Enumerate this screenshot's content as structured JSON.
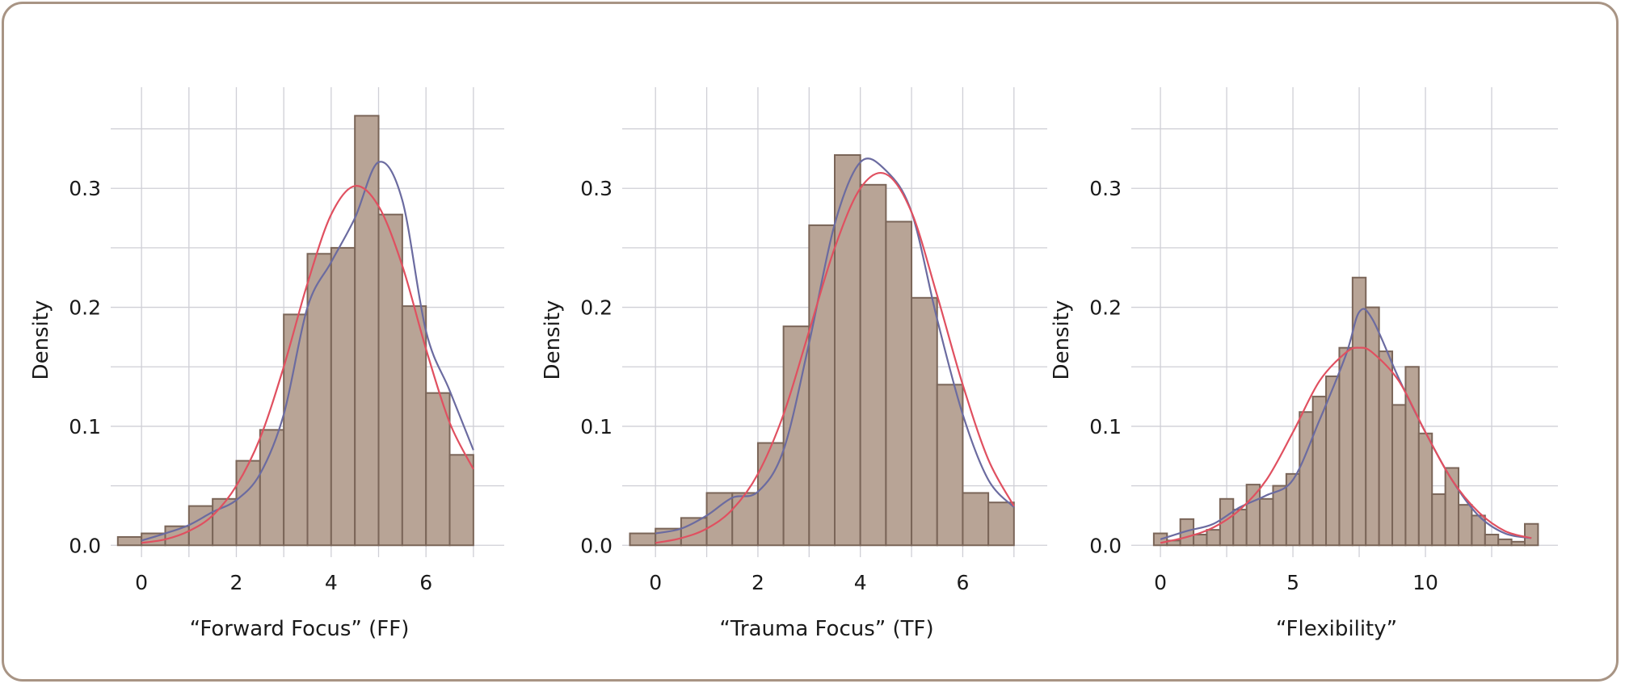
{
  "chart_data": [
    {
      "type": "bar",
      "xlabel": "“Forward Focus” (FF)",
      "ylabel": "Density",
      "xlim": [
        -0.65,
        7.65
      ],
      "ylim": [
        -0.01,
        0.385
      ],
      "xticks": [
        0,
        2,
        4,
        6
      ],
      "xtick_labels": [
        "0",
        "2",
        "4",
        "6"
      ],
      "yticks": [
        0.0,
        0.1,
        0.2,
        0.3
      ],
      "ytick_labels": [
        "0.0",
        "0.1",
        "0.2",
        "0.3"
      ],
      "minor_xgrid": [
        1,
        3,
        5,
        7
      ],
      "minor_ygrid": [
        0.05,
        0.15,
        0.25,
        0.35
      ],
      "grid": true,
      "bars": {
        "edges": [
          -0.5,
          0.0,
          0.5,
          1.0,
          1.5,
          2.0,
          2.5,
          3.0,
          3.5,
          4.0,
          4.5,
          5.0,
          5.5,
          6.0,
          6.5,
          7.0,
          7.5
        ],
        "values": [
          0.007,
          0.01,
          0.016,
          0.033,
          0.039,
          0.071,
          0.097,
          0.194,
          0.245,
          0.25,
          0.361,
          0.278,
          0.201,
          0.128,
          0.076,
          0.0
        ]
      },
      "series": [
        {
          "type": "line",
          "color": "#6b6ba0",
          "x": [
            0,
            0.5,
            1.0,
            1.5,
            2.0,
            2.5,
            3.0,
            3.5,
            4.0,
            4.5,
            5.0,
            5.5,
            6.0,
            6.5,
            7.0
          ],
          "y": [
            0.004,
            0.01,
            0.017,
            0.028,
            0.038,
            0.06,
            0.11,
            0.2,
            0.238,
            0.275,
            0.322,
            0.29,
            0.18,
            0.13,
            0.08
          ]
        },
        {
          "type": "line",
          "color": "#e05060",
          "x": [
            0,
            0.5,
            1.0,
            1.5,
            2.0,
            2.5,
            3.0,
            3.5,
            4.0,
            4.5,
            5.0,
            5.5,
            6.0,
            6.5,
            7.0
          ],
          "y": [
            0.002,
            0.005,
            0.012,
            0.025,
            0.05,
            0.09,
            0.15,
            0.22,
            0.278,
            0.302,
            0.285,
            0.235,
            0.165,
            0.103,
            0.064
          ]
        }
      ]
    },
    {
      "type": "bar",
      "xlabel": "“Trauma Focus” (TF)",
      "ylabel": "Density",
      "xlim": [
        -0.65,
        7.65
      ],
      "ylim": [
        -0.01,
        0.385
      ],
      "xticks": [
        0,
        2,
        4,
        6
      ],
      "xtick_labels": [
        "0",
        "2",
        "4",
        "6"
      ],
      "yticks": [
        0.0,
        0.1,
        0.2,
        0.3
      ],
      "ytick_labels": [
        "0.0",
        "0.1",
        "0.2",
        "0.3"
      ],
      "minor_xgrid": [
        1,
        3,
        5,
        7
      ],
      "minor_ygrid": [
        0.05,
        0.15,
        0.25,
        0.35
      ],
      "grid": true,
      "bars": {
        "edges": [
          -0.5,
          0.0,
          0.5,
          1.0,
          1.5,
          2.0,
          2.5,
          3.0,
          3.5,
          4.0,
          4.5,
          5.0,
          5.5,
          6.0,
          6.5,
          7.0,
          7.5
        ],
        "values": [
          0.01,
          0.014,
          0.023,
          0.044,
          0.044,
          0.086,
          0.184,
          0.269,
          0.328,
          0.303,
          0.272,
          0.208,
          0.135,
          0.044,
          0.036,
          0.0
        ]
      },
      "series": [
        {
          "type": "line",
          "color": "#6b6ba0",
          "x": [
            0,
            0.5,
            1.0,
            1.5,
            2.0,
            2.5,
            3.0,
            3.5,
            4.0,
            4.5,
            5.0,
            5.5,
            6.0,
            6.5,
            7.0
          ],
          "y": [
            0.01,
            0.014,
            0.025,
            0.04,
            0.045,
            0.08,
            0.17,
            0.27,
            0.322,
            0.315,
            0.28,
            0.19,
            0.11,
            0.055,
            0.032
          ]
        },
        {
          "type": "line",
          "color": "#e05060",
          "x": [
            0,
            0.5,
            1.0,
            1.5,
            2.0,
            2.5,
            3.0,
            3.5,
            4.0,
            4.5,
            5.0,
            5.5,
            6.0,
            6.5,
            7.0
          ],
          "y": [
            0.002,
            0.006,
            0.014,
            0.03,
            0.06,
            0.11,
            0.18,
            0.25,
            0.3,
            0.312,
            0.28,
            0.21,
            0.135,
            0.072,
            0.033
          ]
        }
      ]
    },
    {
      "type": "bar",
      "xlabel": "“Flexibility”",
      "ylabel": "Density",
      "xlim": [
        -1.1,
        15.0
      ],
      "ylim": [
        -0.01,
        0.385
      ],
      "xticks": [
        0,
        5,
        10
      ],
      "xtick_labels": [
        "0",
        "5",
        "10"
      ],
      "yticks": [
        0.0,
        0.1,
        0.2,
        0.3
      ],
      "ytick_labels": [
        "0.0",
        "0.1",
        "0.2",
        "0.3"
      ],
      "minor_xgrid": [
        2.5,
        7.5,
        12.5
      ],
      "minor_ygrid": [
        0.05,
        0.15,
        0.25,
        0.35
      ],
      "grid": true,
      "bars": {
        "edges": [
          -0.25,
          0.25,
          0.75,
          1.25,
          1.75,
          2.25,
          2.75,
          3.25,
          3.75,
          4.25,
          4.75,
          5.25,
          5.75,
          6.25,
          6.75,
          7.25,
          7.75,
          8.25,
          8.75,
          9.25,
          9.75,
          10.25,
          10.75,
          11.25,
          11.75,
          12.25,
          12.75,
          13.25,
          13.75,
          14.25
        ],
        "values": [
          0.01,
          0.004,
          0.022,
          0.009,
          0.013,
          0.039,
          0.03,
          0.051,
          0.039,
          0.05,
          0.06,
          0.112,
          0.125,
          0.142,
          0.166,
          0.225,
          0.2,
          0.163,
          0.118,
          0.15,
          0.094,
          0.043,
          0.065,
          0.034,
          0.025,
          0.009,
          0.005,
          0.003,
          0.018
        ]
      },
      "series": [
        {
          "type": "line",
          "color": "#6b6ba0",
          "x": [
            0,
            1,
            2,
            3,
            4,
            5,
            6,
            7,
            7.5,
            8,
            9,
            10,
            11,
            12,
            13,
            14
          ],
          "y": [
            0.005,
            0.012,
            0.018,
            0.032,
            0.042,
            0.055,
            0.105,
            0.16,
            0.196,
            0.19,
            0.14,
            0.095,
            0.055,
            0.025,
            0.01,
            0.006
          ]
        },
        {
          "type": "line",
          "color": "#e05060",
          "x": [
            0,
            1,
            2,
            3,
            4,
            5,
            6,
            7,
            7.5,
            8,
            9,
            10,
            11,
            12,
            13,
            14
          ],
          "y": [
            0.002,
            0.007,
            0.015,
            0.03,
            0.055,
            0.095,
            0.138,
            0.162,
            0.166,
            0.162,
            0.138,
            0.095,
            0.055,
            0.028,
            0.012,
            0.006
          ]
        }
      ]
    }
  ],
  "colors": {
    "bar_fill": "#b8a496",
    "bar_edge": "#7a6558",
    "grid": "#cfcfd6",
    "frame": "#a89484"
  }
}
